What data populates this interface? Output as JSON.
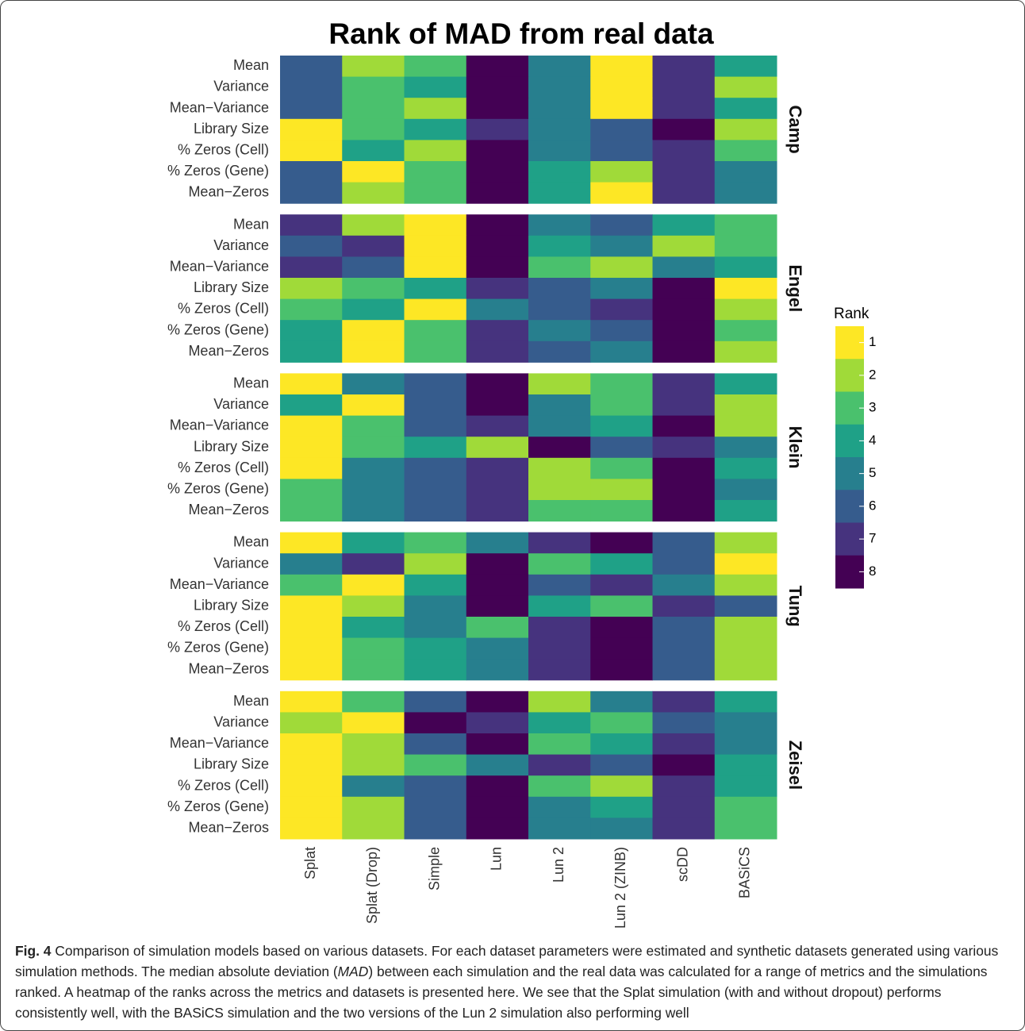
{
  "chart_data": {
    "type": "heatmap",
    "title": "Rank of MAD from real data",
    "x_categories": [
      "Splat",
      "Splat (Drop)",
      "Simple",
      "Lun",
      "Lun 2",
      "Lun 2 (ZINB)",
      "scDD",
      "BASiCS"
    ],
    "y_categories": [
      "Mean",
      "Variance",
      "Mean−Variance",
      "Library Size",
      "% Zeros (Cell)",
      "% Zeros (Gene)",
      "Mean−Zeros"
    ],
    "panels": [
      {
        "name": "Camp",
        "values": [
          [
            6,
            2,
            3,
            8,
            5,
            1,
            7,
            4
          ],
          [
            6,
            3,
            4,
            8,
            5,
            1,
            7,
            2
          ],
          [
            6,
            3,
            2,
            8,
            5,
            1,
            7,
            4
          ],
          [
            1,
            3,
            4,
            7,
            5,
            6,
            8,
            2
          ],
          [
            1,
            4,
            2,
            8,
            5,
            6,
            7,
            3
          ],
          [
            6,
            1,
            3,
            8,
            4,
            2,
            7,
            5
          ],
          [
            6,
            2,
            3,
            8,
            4,
            1,
            7,
            5
          ]
        ]
      },
      {
        "name": "Engel",
        "values": [
          [
            7,
            2,
            1,
            8,
            5,
            6,
            4,
            3
          ],
          [
            6,
            7,
            1,
            8,
            4,
            5,
            2,
            3
          ],
          [
            7,
            6,
            1,
            8,
            3,
            2,
            5,
            4
          ],
          [
            2,
            3,
            4,
            7,
            6,
            5,
            8,
            1
          ],
          [
            3,
            4,
            1,
            5,
            6,
            7,
            8,
            2
          ],
          [
            4,
            1,
            3,
            7,
            5,
            6,
            8,
            3
          ],
          [
            4,
            1,
            3,
            7,
            6,
            5,
            8,
            2
          ]
        ]
      },
      {
        "name": "Klein",
        "values": [
          [
            1,
            5,
            6,
            8,
            2,
            3,
            7,
            4
          ],
          [
            4,
            1,
            6,
            8,
            5,
            3,
            7,
            2
          ],
          [
            1,
            3,
            6,
            7,
            5,
            4,
            8,
            2
          ],
          [
            1,
            3,
            4,
            2,
            8,
            6,
            7,
            5
          ],
          [
            1,
            5,
            6,
            7,
            2,
            3,
            8,
            4
          ],
          [
            3,
            5,
            6,
            7,
            2,
            2,
            8,
            5
          ],
          [
            3,
            5,
            6,
            7,
            3,
            3,
            8,
            4
          ]
        ]
      },
      {
        "name": "Tung",
        "values": [
          [
            1,
            4,
            3,
            5,
            7,
            8,
            6,
            2
          ],
          [
            5,
            7,
            2,
            8,
            3,
            4,
            6,
            1
          ],
          [
            3,
            1,
            4,
            8,
            6,
            7,
            5,
            2
          ],
          [
            1,
            2,
            5,
            8,
            4,
            3,
            7,
            6
          ],
          [
            1,
            4,
            5,
            3,
            7,
            8,
            6,
            2
          ],
          [
            1,
            3,
            4,
            5,
            7,
            8,
            6,
            2
          ],
          [
            1,
            3,
            4,
            5,
            7,
            8,
            6,
            2
          ]
        ]
      },
      {
        "name": "Zeisel",
        "values": [
          [
            1,
            3,
            6,
            8,
            2,
            5,
            7,
            4
          ],
          [
            2,
            1,
            8,
            7,
            4,
            3,
            6,
            5
          ],
          [
            1,
            2,
            6,
            8,
            3,
            4,
            7,
            5
          ],
          [
            1,
            2,
            3,
            5,
            7,
            6,
            8,
            4
          ],
          [
            1,
            5,
            6,
            8,
            3,
            2,
            7,
            4
          ],
          [
            1,
            2,
            6,
            8,
            5,
            4,
            7,
            3
          ],
          [
            1,
            2,
            6,
            8,
            5,
            5,
            7,
            3
          ]
        ]
      }
    ],
    "legend": {
      "title": "Rank",
      "ticks": [
        1,
        2,
        3,
        4,
        5,
        6,
        7,
        8
      ],
      "colors": [
        "#FDE725",
        "#A0DA39",
        "#4AC16D",
        "#1FA187",
        "#277F8E",
        "#365C8D",
        "#46337E",
        "#440154"
      ]
    }
  },
  "caption": {
    "label": "Fig. 4",
    "parts": [
      "Comparison of simulation models based on various datasets. For each dataset parameters were estimated and synthetic datasets generated using various simulation methods. The median absolute deviation (",
      "MAD",
      ") between each simulation and the real data was calculated for a range of metrics and the simulations ranked. A heatmap of the ranks across the metrics and datasets is presented here. We see that the Splat simulation (with and without dropout) performs consistently well, with the BASiCS simulation and the two versions of the Lun 2 simulation also performing well"
    ]
  }
}
